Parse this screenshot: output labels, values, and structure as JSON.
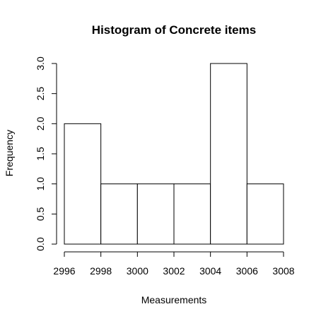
{
  "chart_data": {
    "type": "bar",
    "title": "Histogram of Concrete items",
    "xlabel": "Measurements",
    "ylabel": "Frequency",
    "bins": [
      {
        "from": 2996,
        "to": 2998,
        "count": 2
      },
      {
        "from": 2998,
        "to": 3000,
        "count": 1
      },
      {
        "from": 3000,
        "to": 3002,
        "count": 1
      },
      {
        "from": 3002,
        "to": 3004,
        "count": 1
      },
      {
        "from": 3004,
        "to": 3006,
        "count": 3
      },
      {
        "from": 3006,
        "to": 3008,
        "count": 1
      }
    ],
    "x_ticks": [
      "2996",
      "2998",
      "3000",
      "3002",
      "3004",
      "3006",
      "3008"
    ],
    "y_ticks": [
      "0.0",
      "0.5",
      "1.0",
      "1.5",
      "2.0",
      "2.5",
      "3.0"
    ],
    "xlim": [
      2996,
      3008
    ],
    "ylim": [
      0,
      3
    ],
    "grid": false,
    "bar_fill": "#ffffff",
    "bar_stroke": "#000000"
  }
}
